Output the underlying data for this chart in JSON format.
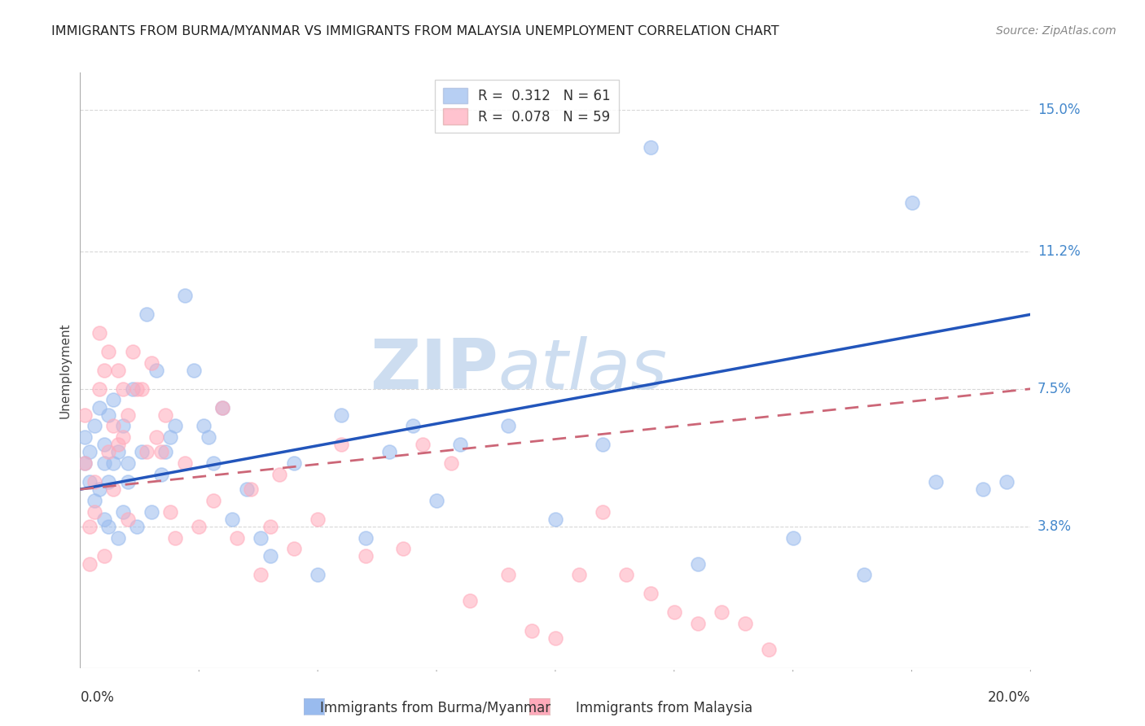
{
  "title": "IMMIGRANTS FROM BURMA/MYANMAR VS IMMIGRANTS FROM MALAYSIA UNEMPLOYMENT CORRELATION CHART",
  "source": "Source: ZipAtlas.com",
  "ylabel": "Unemployment",
  "xlim": [
    0.0,
    0.2
  ],
  "ylim": [
    0.0,
    0.16
  ],
  "yticks": [
    0.038,
    0.075,
    0.112,
    0.15
  ],
  "ytick_labels": [
    "3.8%",
    "7.5%",
    "11.2%",
    "15.0%"
  ],
  "xtick_left": "0.0%",
  "xtick_right": "20.0%",
  "grid_color": "#d8d8d8",
  "background_color": "#ffffff",
  "blue_color": "#99bbee",
  "pink_color": "#ffaabb",
  "trend_blue": "#2255bb",
  "trend_pink": "#cc6677",
  "R_blue": 0.312,
  "N_blue": 61,
  "R_pink": 0.078,
  "N_pink": 59,
  "blue_trend_x0": 0.0,
  "blue_trend_y0": 0.048,
  "blue_trend_x1": 0.2,
  "blue_trend_y1": 0.095,
  "pink_trend_x0": 0.0,
  "pink_trend_y0": 0.048,
  "pink_trend_x1": 0.2,
  "pink_trend_y1": 0.075,
  "blue_points_x": [
    0.001,
    0.001,
    0.002,
    0.002,
    0.003,
    0.003,
    0.004,
    0.004,
    0.005,
    0.005,
    0.005,
    0.006,
    0.006,
    0.006,
    0.007,
    0.007,
    0.008,
    0.008,
    0.009,
    0.009,
    0.01,
    0.01,
    0.011,
    0.012,
    0.013,
    0.014,
    0.015,
    0.016,
    0.017,
    0.018,
    0.019,
    0.02,
    0.022,
    0.024,
    0.026,
    0.027,
    0.028,
    0.03,
    0.032,
    0.035,
    0.038,
    0.04,
    0.045,
    0.05,
    0.055,
    0.06,
    0.065,
    0.07,
    0.075,
    0.08,
    0.09,
    0.1,
    0.11,
    0.12,
    0.13,
    0.15,
    0.165,
    0.175,
    0.18,
    0.19,
    0.195
  ],
  "blue_points_y": [
    0.062,
    0.055,
    0.058,
    0.05,
    0.065,
    0.045,
    0.07,
    0.048,
    0.06,
    0.04,
    0.055,
    0.038,
    0.068,
    0.05,
    0.055,
    0.072,
    0.035,
    0.058,
    0.042,
    0.065,
    0.05,
    0.055,
    0.075,
    0.038,
    0.058,
    0.095,
    0.042,
    0.08,
    0.052,
    0.058,
    0.062,
    0.065,
    0.1,
    0.08,
    0.065,
    0.062,
    0.055,
    0.07,
    0.04,
    0.048,
    0.035,
    0.03,
    0.055,
    0.025,
    0.068,
    0.035,
    0.058,
    0.065,
    0.045,
    0.06,
    0.065,
    0.04,
    0.06,
    0.14,
    0.028,
    0.035,
    0.025,
    0.125,
    0.05,
    0.048,
    0.05
  ],
  "pink_points_x": [
    0.001,
    0.001,
    0.002,
    0.002,
    0.003,
    0.003,
    0.004,
    0.004,
    0.005,
    0.005,
    0.006,
    0.006,
    0.007,
    0.007,
    0.008,
    0.008,
    0.009,
    0.009,
    0.01,
    0.01,
    0.011,
    0.012,
    0.013,
    0.014,
    0.015,
    0.016,
    0.017,
    0.018,
    0.019,
    0.02,
    0.022,
    0.025,
    0.028,
    0.03,
    0.033,
    0.036,
    0.038,
    0.04,
    0.042,
    0.045,
    0.05,
    0.055,
    0.06,
    0.068,
    0.072,
    0.078,
    0.082,
    0.09,
    0.095,
    0.1,
    0.105,
    0.11,
    0.115,
    0.12,
    0.125,
    0.13,
    0.135,
    0.14,
    0.145
  ],
  "pink_points_y": [
    0.068,
    0.055,
    0.038,
    0.028,
    0.05,
    0.042,
    0.075,
    0.09,
    0.08,
    0.03,
    0.085,
    0.058,
    0.065,
    0.048,
    0.08,
    0.06,
    0.075,
    0.062,
    0.068,
    0.04,
    0.085,
    0.075,
    0.075,
    0.058,
    0.082,
    0.062,
    0.058,
    0.068,
    0.042,
    0.035,
    0.055,
    0.038,
    0.045,
    0.07,
    0.035,
    0.048,
    0.025,
    0.038,
    0.052,
    0.032,
    0.04,
    0.06,
    0.03,
    0.032,
    0.06,
    0.055,
    0.018,
    0.025,
    0.01,
    0.008,
    0.025,
    0.042,
    0.025,
    0.02,
    0.015,
    0.012,
    0.015,
    0.012,
    0.005
  ],
  "watermark_zip": "ZIP",
  "watermark_atlas": "atlas",
  "watermark_color": "#c5d8ee",
  "title_fontsize": 11.5,
  "axis_label_fontsize": 11,
  "tick_fontsize": 12,
  "legend_fontsize": 12,
  "source_fontsize": 10,
  "bottom_legend_label1": "Immigrants from Burma/Myanmar",
  "bottom_legend_label2": "Immigrants from Malaysia"
}
